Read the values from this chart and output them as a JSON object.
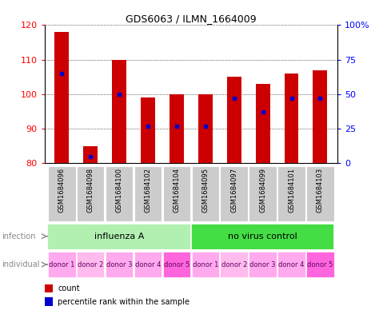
{
  "title": "GDS6063 / ILMN_1664009",
  "samples": [
    "GSM1684096",
    "GSM1684098",
    "GSM1684100",
    "GSM1684102",
    "GSM1684104",
    "GSM1684095",
    "GSM1684097",
    "GSM1684099",
    "GSM1684101",
    "GSM1684103"
  ],
  "counts": [
    118,
    85,
    110,
    99,
    100,
    100,
    105,
    103,
    106,
    107
  ],
  "percentile_ranks": [
    65,
    5,
    50,
    27,
    27,
    27,
    47,
    37,
    47,
    47
  ],
  "ymin": 80,
  "ymax": 120,
  "yticks_left": [
    80,
    90,
    100,
    110,
    120
  ],
  "yticks_right": [
    0,
    25,
    50,
    75,
    100
  ],
  "ytick_labels_right": [
    "0",
    "25",
    "50",
    "75",
    "100%"
  ],
  "infection_groups": [
    {
      "label": "influenza A",
      "start": 0,
      "end": 5,
      "color": "#b2f0b2"
    },
    {
      "label": "no virus control",
      "start": 5,
      "end": 10,
      "color": "#44dd44"
    }
  ],
  "individual_labels": [
    "donor 1",
    "donor 2",
    "donor 3",
    "donor 4",
    "donor 5",
    "donor 1",
    "donor 2",
    "donor 3",
    "donor 4",
    "donor 5"
  ],
  "ind_colors": [
    "#ffaaee",
    "#ffbbee",
    "#ffaaee",
    "#ffaaee",
    "#ff66dd",
    "#ffaaee",
    "#ffbbee",
    "#ffaaee",
    "#ffaaee",
    "#ff66dd"
  ],
  "bar_color": "#cc0000",
  "dot_color": "#0000cc",
  "bar_width": 0.5,
  "sample_box_color": "#cccccc",
  "sample_text_color": "#000000",
  "title_fontsize": 9,
  "axis_fontsize": 8,
  "sample_fontsize": 6,
  "inf_fontsize": 8,
  "ind_fontsize": 6,
  "legend_fontsize": 7,
  "label_fontsize": 7,
  "label_color": "#888888"
}
